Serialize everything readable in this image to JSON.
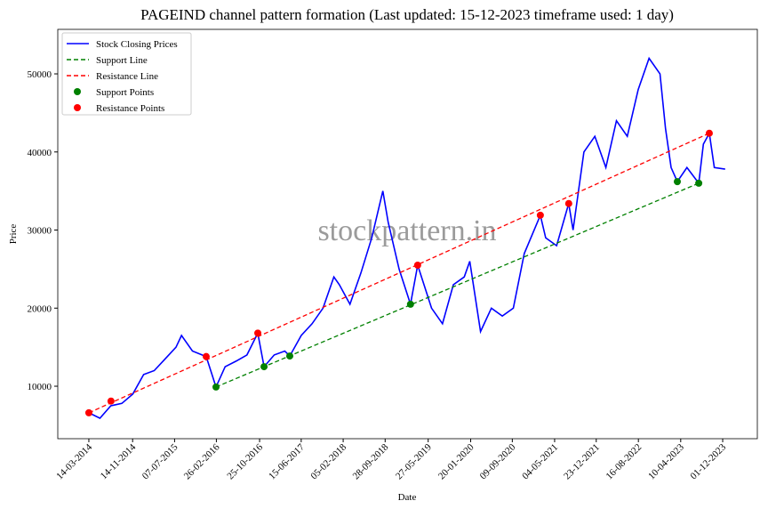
{
  "chart_data": {
    "type": "line",
    "title": "PAGEIND channel pattern formation (Last updated: 15-12-2023 timeframe used: 1 day)",
    "x_label": "Date",
    "y_label": "Price",
    "watermark": "stockpattern.in",
    "legend": "upper left",
    "xlim": [
      "2013-09-21",
      "2024-06-12"
    ],
    "ylim": [
      3280,
      55700
    ],
    "yticks": [
      10000,
      20000,
      30000,
      40000,
      50000
    ],
    "xticks": [
      {
        "value": "2014-03-14",
        "label": "14-03-2014"
      },
      {
        "value": "2014-11-14",
        "label": "14-11-2014"
      },
      {
        "value": "2015-07-07",
        "label": "07-07-2015"
      },
      {
        "value": "2016-02-26",
        "label": "26-02-2016"
      },
      {
        "value": "2016-10-25",
        "label": "25-10-2016"
      },
      {
        "value": "2017-06-15",
        "label": "15-06-2017"
      },
      {
        "value": "2018-02-05",
        "label": "05-02-2018"
      },
      {
        "value": "2018-09-28",
        "label": "28-09-2018"
      },
      {
        "value": "2019-05-27",
        "label": "27-05-2019"
      },
      {
        "value": "2020-01-20",
        "label": "20-01-2020"
      },
      {
        "value": "2020-09-09",
        "label": "09-09-2020"
      },
      {
        "value": "2021-05-04",
        "label": "04-05-2021"
      },
      {
        "value": "2021-12-23",
        "label": "23-12-2021"
      },
      {
        "value": "2022-08-16",
        "label": "16-08-2022"
      },
      {
        "value": "2023-04-10",
        "label": "10-04-2023"
      },
      {
        "value": "2023-12-01",
        "label": "01-12-2023"
      }
    ],
    "series": [
      {
        "name": "Stock Closing Prices",
        "color": "#0000ff",
        "style": "solid",
        "x": [
          "2014-03-14",
          "2014-05-15",
          "2014-07-15",
          "2014-09-15",
          "2014-11-15",
          "2015-01-15",
          "2015-03-15",
          "2015-05-15",
          "2015-07-15",
          "2015-08-15",
          "2015-10-15",
          "2015-12-31",
          "2016-02-24",
          "2016-04-15",
          "2016-06-15",
          "2016-08-15",
          "2016-10-15",
          "2016-11-19",
          "2017-01-15",
          "2017-03-15",
          "2017-04-12",
          "2017-06-15",
          "2017-08-15",
          "2017-10-15",
          "2017-12-15",
          "2018-01-15",
          "2018-03-15",
          "2018-05-15",
          "2018-07-15",
          "2018-09-15",
          "2018-10-15",
          "2018-12-15",
          "2019-02-17",
          "2019-03-29",
          "2019-06-15",
          "2019-08-15",
          "2019-10-15",
          "2019-12-15",
          "2020-01-15",
          "2020-03-15",
          "2020-05-15",
          "2020-07-15",
          "2020-09-15",
          "2020-11-15",
          "2021-02-13",
          "2021-03-15",
          "2021-05-15",
          "2021-07-22",
          "2021-08-15",
          "2021-10-15",
          "2021-12-15",
          "2022-02-15",
          "2022-04-15",
          "2022-06-15",
          "2022-08-15",
          "2022-10-15",
          "2022-12-15",
          "2023-01-15",
          "2023-02-15",
          "2023-03-22",
          "2023-05-15",
          "2023-07-20",
          "2023-08-15",
          "2023-09-17",
          "2023-10-15",
          "2023-12-15"
        ],
        "values": [
          6600,
          5900,
          7500,
          7800,
          9000,
          11500,
          12000,
          13500,
          15000,
          16500,
          14500,
          13800,
          9900,
          12500,
          13200,
          14000,
          16800,
          12500,
          14000,
          14500,
          13870,
          16500,
          18000,
          20000,
          24000,
          23000,
          20500,
          24500,
          29000,
          35000,
          31000,
          25000,
          20500,
          25500,
          20000,
          18000,
          23000,
          24000,
          26000,
          17000,
          20000,
          19000,
          20000,
          27000,
          31900,
          29000,
          28000,
          33400,
          30000,
          40000,
          42000,
          38000,
          44000,
          42000,
          48000,
          52000,
          50000,
          43000,
          38000,
          36200,
          38000,
          36000,
          41000,
          42400,
          38000,
          37800
        ]
      },
      {
        "name": "Support Line",
        "color": "#008000",
        "style": "dashed",
        "x": [
          "2016-02-24",
          "2023-07-20"
        ],
        "values": [
          9900,
          36000
        ]
      },
      {
        "name": "Resistance Line",
        "color": "#ff0000",
        "style": "dashed",
        "x": [
          "2014-03-14",
          "2023-09-17"
        ],
        "values": [
          6600,
          42400
        ]
      },
      {
        "name": "Support Points",
        "color": "#008000",
        "style": "marker",
        "x": [
          "2016-02-24",
          "2016-11-19",
          "2017-04-12",
          "2019-02-17",
          "2023-03-22",
          "2023-07-20"
        ],
        "values": [
          9900,
          12500,
          13870,
          20500,
          36200,
          36000
        ]
      },
      {
        "name": "Resistance Points",
        "color": "#ff0000",
        "style": "marker",
        "x": [
          "2014-03-14",
          "2014-07-16",
          "2015-12-31",
          "2016-10-15",
          "2019-03-29",
          "2021-02-13",
          "2021-07-22",
          "2023-09-17"
        ],
        "values": [
          6600,
          8100,
          13800,
          16800,
          25500,
          31900,
          33400,
          42400
        ]
      }
    ]
  }
}
